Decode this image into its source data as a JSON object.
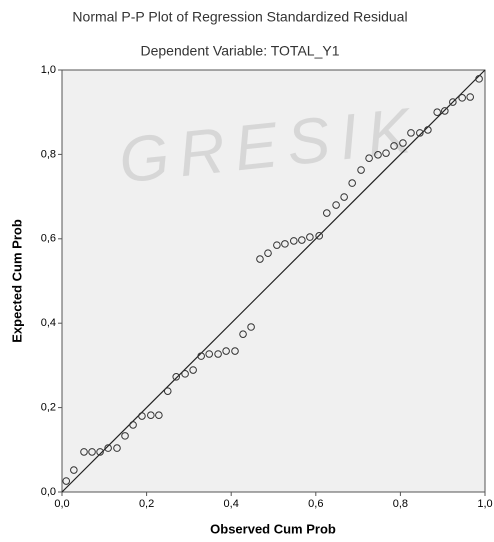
{
  "chart_data": {
    "type": "scatter",
    "title": "Normal P-P Plot of Regression Standardized Residual",
    "subtitle": "Dependent Variable: TOTAL_Y1",
    "watermark": "GRESIK",
    "x_label": "Observed Cum Prob",
    "y_label": "Expected Cum Prob",
    "xlim": [
      0,
      1
    ],
    "ylim": [
      0,
      1
    ],
    "xticks": [
      {
        "value": 0,
        "label": "0,0"
      },
      {
        "value": 0.2,
        "label": "0,2"
      },
      {
        "value": 0.4,
        "label": "0,4"
      },
      {
        "value": 0.6,
        "label": "0,6"
      },
      {
        "value": 0.8,
        "label": "0,8"
      },
      {
        "value": 1,
        "label": "1,0"
      }
    ],
    "yticks": [
      {
        "value": 0,
        "label": "0,0"
      },
      {
        "value": 0.2,
        "label": "0,2"
      },
      {
        "value": 0.4,
        "label": "0,4"
      },
      {
        "value": 0.6,
        "label": "0,6"
      },
      {
        "value": 0.8,
        "label": "0,8"
      },
      {
        "value": 1,
        "label": "1,0"
      }
    ],
    "color": "#333333",
    "x": [
      0.01,
      0.028,
      0.052,
      0.071,
      0.09,
      0.109,
      0.13,
      0.149,
      0.168,
      0.189,
      0.21,
      0.229,
      0.25,
      0.27,
      0.291,
      0.31,
      0.329,
      0.348,
      0.369,
      0.388,
      0.409,
      0.428,
      0.447,
      0.468,
      0.487,
      0.508,
      0.527,
      0.548,
      0.567,
      0.586,
      0.608,
      0.626,
      0.648,
      0.667,
      0.686,
      0.707,
      0.726,
      0.747,
      0.766,
      0.785,
      0.806,
      0.825,
      0.846,
      0.865,
      0.887,
      0.905,
      0.924,
      0.946,
      0.965,
      0.986
    ],
    "values": [
      0.026,
      0.052,
      0.095,
      0.095,
      0.095,
      0.104,
      0.104,
      0.133,
      0.159,
      0.18,
      0.182,
      0.182,
      0.239,
      0.273,
      0.28,
      0.289,
      0.322,
      0.327,
      0.327,
      0.334,
      0.334,
      0.374,
      0.391,
      0.552,
      0.566,
      0.585,
      0.588,
      0.595,
      0.597,
      0.604,
      0.607,
      0.661,
      0.68,
      0.699,
      0.732,
      0.763,
      0.791,
      0.799,
      0.803,
      0.82,
      0.827,
      0.851,
      0.851,
      0.858,
      0.9,
      0.903,
      0.924,
      0.934,
      0.936,
      0.979
    ]
  }
}
